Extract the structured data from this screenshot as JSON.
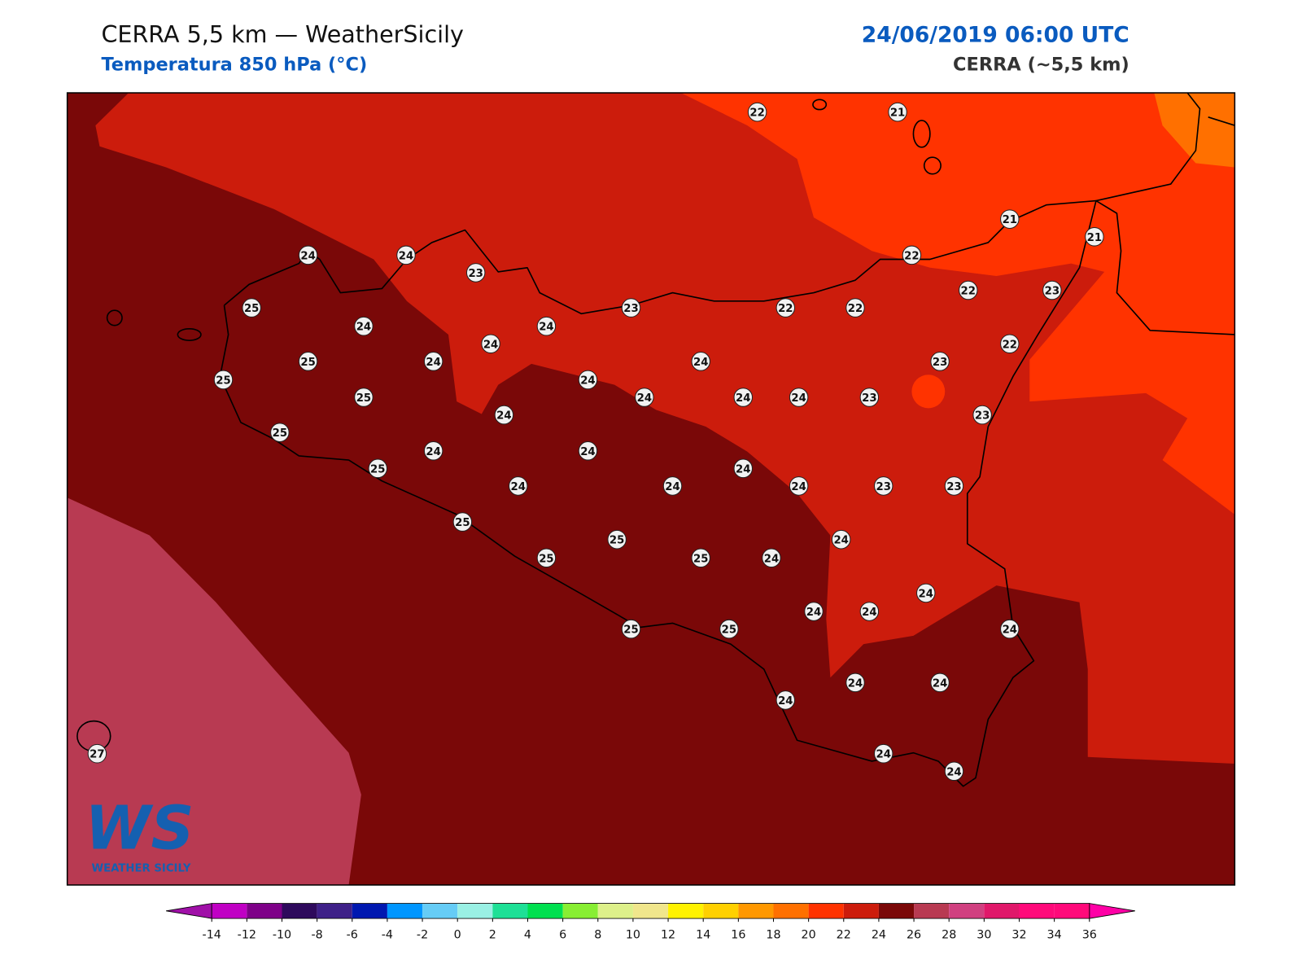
{
  "header": {
    "title": "CERRA 5,5 km — WeatherSicily",
    "subtitle": "Temperatura 850 hPa (°C)",
    "date": "24/06/2019 06:00 UTC",
    "model": "CERRA (~5,5 km)"
  },
  "stations": [
    22,
    21,
    21,
    21,
    24,
    24,
    23,
    22,
    25,
    23,
    22,
    22,
    22,
    23,
    24,
    24,
    24,
    22,
    25,
    24,
    24,
    23,
    25,
    24,
    25,
    24,
    24,
    24,
    23,
    24,
    23,
    25,
    24,
    24,
    25,
    24,
    24,
    24,
    24,
    23,
    23,
    25,
    24,
    25,
    25,
    25,
    24,
    24,
    24,
    24,
    25,
    25,
    24,
    24,
    24,
    24,
    27,
    24,
    24
  ],
  "colorbar": {
    "ticks": [
      -14,
      -12,
      -10,
      -8,
      -6,
      -4,
      -2,
      0,
      2,
      4,
      6,
      8,
      10,
      12,
      14,
      16,
      18,
      20,
      22,
      24,
      26,
      28,
      30,
      32,
      34,
      36
    ],
    "colors": [
      "#c000c4",
      "#7e0088",
      "#2e0a5c",
      "#3e2088",
      "#0018b0",
      "#0096ff",
      "#66ccf6",
      "#9af0e4",
      "#1ee096",
      "#00e050",
      "#88ee33",
      "#ddf08a",
      "#f0e68c",
      "#fff200",
      "#ffd000",
      "#ff9800",
      "#ff7000",
      "#ff3300",
      "#cc1c0c",
      "#7a0808",
      "#b83a52",
      "#d04080",
      "#e0186a",
      "#ff0a7a",
      "#ff0a7a"
    ],
    "under_color": "#a010a8",
    "over_color": "#ff00a6"
  },
  "logo": {
    "initials": "WS",
    "name": "WEATHER SICILY"
  }
}
